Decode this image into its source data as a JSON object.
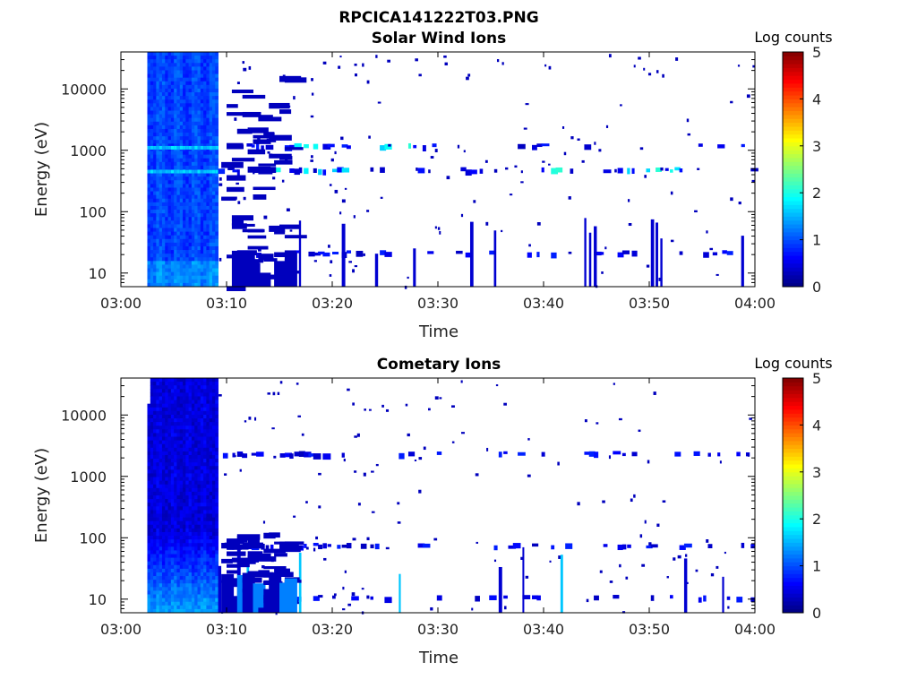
{
  "figure": {
    "filename": "RPCICA141222T03.PNG"
  },
  "colorbar": {
    "label": "Log counts",
    "ticks": [
      "0",
      "1",
      "2",
      "3",
      "4",
      "5"
    ],
    "range": [
      0,
      5
    ],
    "colormap": "jet"
  },
  "chart_data": [
    {
      "type": "heatmap",
      "title": "Solar Wind Ions",
      "xlabel": "Time",
      "ylabel": "Energy (eV)",
      "x_ticks": [
        "03:00",
        "03:10",
        "03:20",
        "03:30",
        "03:40",
        "03:50",
        "04:00"
      ],
      "y_ticks": [
        "10",
        "100",
        "1000",
        "10000"
      ],
      "ylim": [
        6,
        40000
      ],
      "y_scale": "log",
      "xlim": [
        "03:00",
        "04:00"
      ],
      "dense_interval": [
        "03:02.5",
        "03:09.2"
      ],
      "energy_bands_eV": [
        1100,
        450,
        20
      ],
      "colorbar_label": "Log counts"
    },
    {
      "type": "heatmap",
      "title": "Cometary Ions",
      "xlabel": "Time",
      "ylabel": "Energy (eV)",
      "x_ticks": [
        "03:00",
        "03:10",
        "03:20",
        "03:30",
        "03:40",
        "03:50",
        "04:00"
      ],
      "y_ticks": [
        "10",
        "100",
        "1000",
        "10000"
      ],
      "ylim": [
        6,
        40000
      ],
      "y_scale": "log",
      "xlim": [
        "03:00",
        "04:00"
      ],
      "dense_interval": [
        "03:02.5",
        "03:09.2"
      ],
      "energy_bands_eV": [
        2200,
        70,
        10
      ],
      "colorbar_label": "Log counts"
    }
  ]
}
